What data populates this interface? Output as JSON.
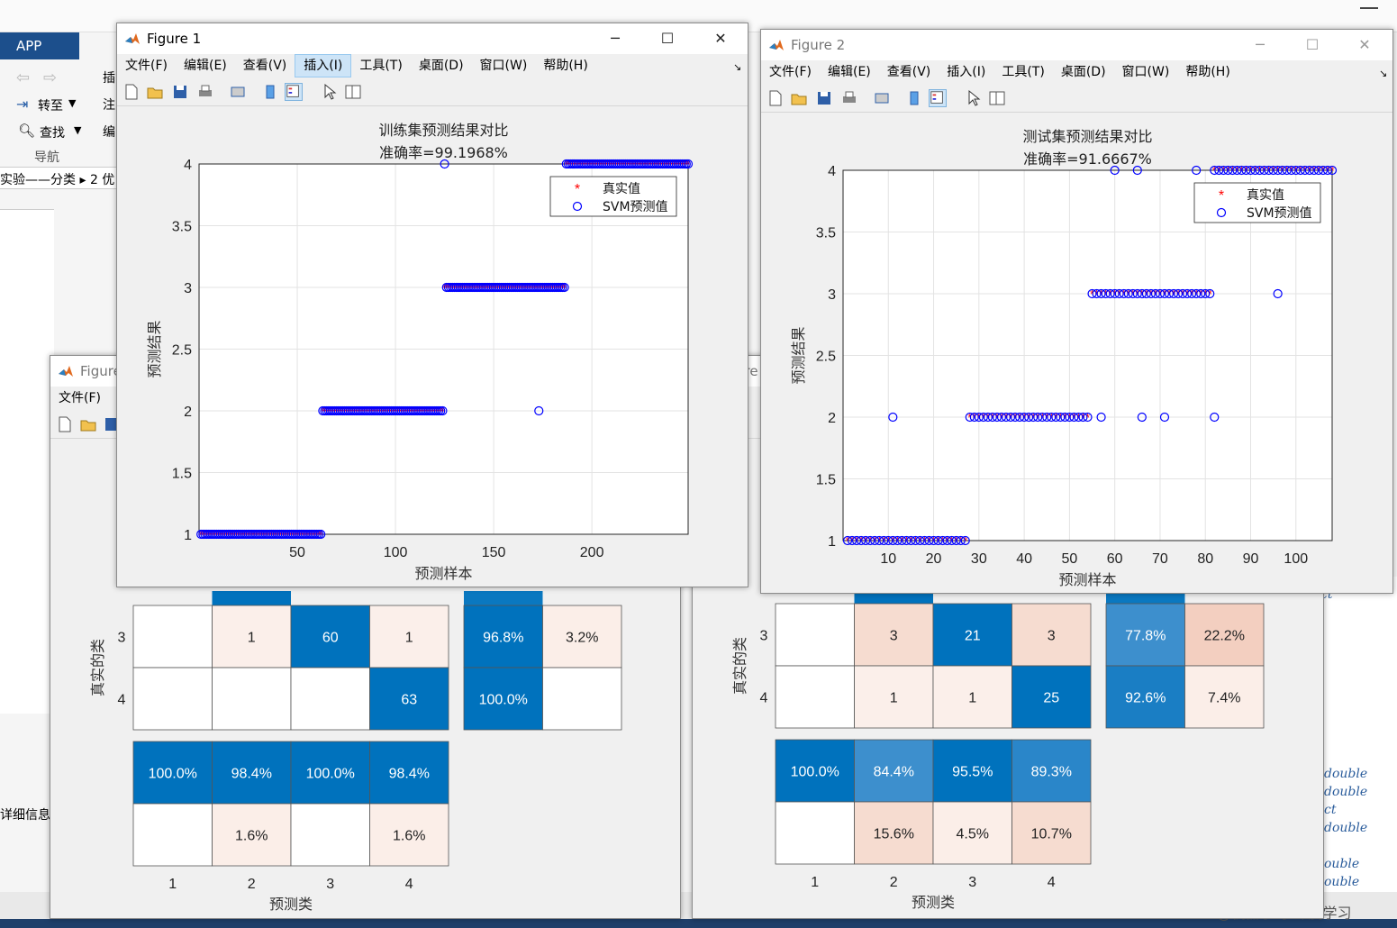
{
  "desktop": {
    "app_tab": "APP",
    "app_tab2": "编",
    "ribbon": {
      "insert": "插",
      "note": "注",
      "edit": "编",
      "goto": "转至",
      "find": "查找",
      "nav": "导航"
    },
    "breadcrumb_a": "实验——分类",
    "breadcrumb_b": "2 优",
    "detail_label": "详细信息",
    "workspace_types": [
      "double",
      "double",
      "ct",
      "double",
      "ouble",
      "ouble"
    ],
    "watermark": "CSDN @机器学习-深度学习",
    "misc_fragment_1": "ct",
    "misc_fragment_2": "ure"
  },
  "figure1": {
    "title": "Figure 1",
    "menu": [
      "文件(F)",
      "编辑(E)",
      "查看(V)",
      "插入(I)",
      "工具(T)",
      "桌面(D)",
      "窗口(W)",
      "帮助(H)"
    ]
  },
  "figure2": {
    "title": "Figure 2",
    "menu": [
      "文件(F)",
      "编辑(E)",
      "查看(V)",
      "插入(I)",
      "工具(T)",
      "桌面(D)",
      "窗口(W)",
      "帮助(H)"
    ]
  },
  "figure3": {
    "title": "Figure",
    "menu_file": "文件(F)"
  },
  "chart_data": [
    {
      "type": "scatter",
      "title": "训练集预测结果对比",
      "subtitle": "准确率=99.1968%",
      "xlabel": "预测样本",
      "ylabel": "预测结果",
      "xlim": [
        0,
        249
      ],
      "ylim": [
        1,
        4
      ],
      "xticks": [
        50,
        100,
        150,
        200
      ],
      "yticks": [
        1,
        1.5,
        2,
        2.5,
        3,
        3.5,
        4
      ],
      "grid": true,
      "legend_position": "top-right",
      "series": [
        {
          "name": "真实值",
          "marker": "asterisk",
          "color": "#ff0000",
          "segments": [
            [
              1,
              62,
              1
            ],
            [
              63,
              124,
              2
            ],
            [
              125,
              186,
              3
            ],
            [
              187,
              249,
              4
            ]
          ]
        },
        {
          "name": "SVM预测值",
          "marker": "circle",
          "color": "#0000ff",
          "segments": [
            [
              1,
              62,
              1
            ],
            [
              63,
              124,
              2
            ],
            [
              126,
              186,
              3
            ],
            [
              187,
              249,
              4
            ]
          ],
          "outliers": [
            [
              125,
              4
            ],
            [
              173,
              2
            ]
          ]
        }
      ]
    },
    {
      "type": "scatter",
      "title": "测试集预测结果对比",
      "subtitle": "准确率=91.6667%",
      "xlabel": "预测样本",
      "ylabel": "预测结果",
      "xlim": [
        0,
        108
      ],
      "ylim": [
        1,
        4
      ],
      "xticks": [
        10,
        20,
        30,
        40,
        50,
        60,
        70,
        80,
        90,
        100
      ],
      "yticks": [
        1,
        1.5,
        2,
        2.5,
        3,
        3.5,
        4
      ],
      "grid": true,
      "legend_position": "top-right",
      "series": [
        {
          "name": "真实值",
          "marker": "asterisk",
          "color": "#ff0000",
          "segments": [
            [
              1,
              27,
              1
            ],
            [
              28,
              54,
              2
            ],
            [
              55,
              81,
              3
            ],
            [
              82,
              108,
              4
            ]
          ]
        },
        {
          "name": "SVM预测值",
          "marker": "circle",
          "color": "#0000ff",
          "segments": [
            [
              1,
              27,
              1
            ],
            [
              28,
              54,
              2
            ],
            [
              55,
              81,
              3
            ],
            [
              82,
              108,
              4
            ]
          ],
          "outliers": [
            [
              11,
              2
            ],
            [
              57,
              2
            ],
            [
              60,
              4
            ],
            [
              65,
              4
            ],
            [
              66,
              2
            ],
            [
              71,
              2
            ],
            [
              78,
              4
            ],
            [
              82,
              2
            ],
            [
              96,
              3
            ]
          ]
        }
      ]
    },
    {
      "type": "heatmap",
      "title": "",
      "xlabel": "预测类",
      "ylabel": "真实的类",
      "x_ticks": [
        "1",
        "2",
        "3",
        "4"
      ],
      "visible_rows": [
        {
          "label": "3",
          "cells": [
            "",
            "1",
            "60",
            "1"
          ],
          "row_summary": [
            "96.8%",
            "3.2%"
          ]
        },
        {
          "label": "4",
          "cells": [
            "",
            "",
            "",
            "63"
          ],
          "row_summary": [
            "100.0%",
            ""
          ]
        }
      ],
      "column_summary": {
        "correct": [
          "100.0%",
          "98.4%",
          "100.0%",
          "98.4%"
        ],
        "incorrect": [
          "",
          "1.6%",
          "",
          "1.6%"
        ]
      }
    },
    {
      "type": "heatmap",
      "title": "",
      "xlabel": "预测类",
      "ylabel": "真实的类",
      "x_ticks": [
        "1",
        "2",
        "3",
        "4"
      ],
      "visible_rows": [
        {
          "label": "3",
          "cells": [
            "",
            "3",
            "21",
            "3"
          ],
          "row_summary": [
            "77.8%",
            "22.2%"
          ]
        },
        {
          "label": "4",
          "cells": [
            "",
            "1",
            "1",
            "25"
          ],
          "row_summary": [
            "92.6%",
            "7.4%"
          ]
        }
      ],
      "column_summary": {
        "correct": [
          "100.0%",
          "84.4%",
          "95.5%",
          "89.3%"
        ],
        "incorrect": [
          "",
          "15.6%",
          "4.5%",
          "10.7%"
        ]
      }
    }
  ]
}
